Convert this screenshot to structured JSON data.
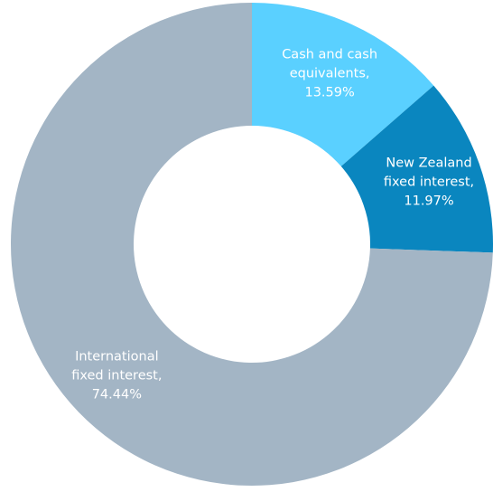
{
  "chart_data": {
    "type": "pie",
    "style": "donut",
    "start": "top",
    "direction": "clockwise",
    "slices": [
      {
        "label_lines": [
          "Cash and cash",
          "equivalents,",
          "13.59%"
        ],
        "value": 13.59,
        "color": "#5ad0ff"
      },
      {
        "label_lines": [
          "New Zealand",
          "fixed interest,",
          "11.97%"
        ],
        "value": 11.97,
        "color": "#0a86bf"
      },
      {
        "label_lines": [
          "International",
          "fixed interest,",
          "74.44%"
        ],
        "value": 74.44,
        "color": "#a3b5c5"
      }
    ]
  }
}
